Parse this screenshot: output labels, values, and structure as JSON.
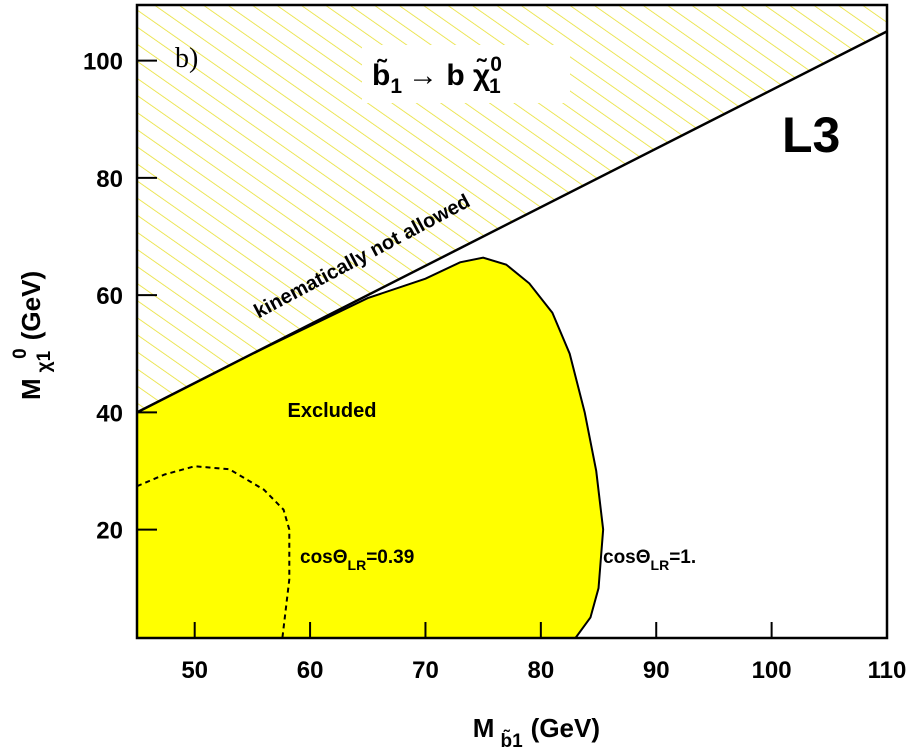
{
  "chart_data": {
    "type": "contour",
    "panel_label": "b)",
    "title": {
      "a": "b̃",
      "a_sub": "1",
      "b": "→ b χ̃",
      "b_sup": "0",
      "b_sub": "1"
    },
    "experiment": "L3",
    "xlabel": {
      "main": "M",
      "sub": "b̃1",
      "unit": "(GeV)"
    },
    "ylabel": {
      "main": "M",
      "sub": "χ1",
      "sup": "0",
      "unit": "(GeV)"
    },
    "xlim": [
      45,
      110
    ],
    "ylim": [
      1.5,
      109.5
    ],
    "xticks": [
      50,
      60,
      70,
      80,
      90,
      100,
      110
    ],
    "yticks": [
      20,
      40,
      60,
      80,
      100
    ],
    "kinematic_limit": {
      "label": "kinematically not allowed",
      "x": [
        45,
        110
      ],
      "y": [
        40,
        105
      ],
      "hatch_color": "#e8e030"
    },
    "region_label": "Excluded",
    "series": [
      {
        "name": {
          "a": "cosΘ",
          "sub": "LR",
          "b": "=1."
        },
        "color": "#ffff00",
        "style": "solid",
        "x": [
          45,
          55,
          65,
          70,
          73,
          75,
          77,
          79,
          81,
          82.5,
          83.8,
          84.8,
          85.4,
          85,
          84.3,
          83
        ],
        "y": [
          40,
          50,
          59.5,
          62.8,
          65.6,
          66.4,
          65.2,
          62,
          57,
          50,
          40,
          30,
          20,
          10,
          5,
          1.5
        ]
      },
      {
        "name": {
          "a": "cosΘ",
          "sub": "LR",
          "b": "=0.39"
        },
        "color": "#000000",
        "style": "dashed",
        "x": [
          45,
          47.4,
          50,
          53,
          56,
          57.7,
          58.2,
          58.2,
          57.6
        ],
        "y": [
          27.4,
          29.4,
          30.8,
          30.3,
          26.8,
          23.4,
          20,
          11.5,
          1.5
        ]
      }
    ]
  }
}
